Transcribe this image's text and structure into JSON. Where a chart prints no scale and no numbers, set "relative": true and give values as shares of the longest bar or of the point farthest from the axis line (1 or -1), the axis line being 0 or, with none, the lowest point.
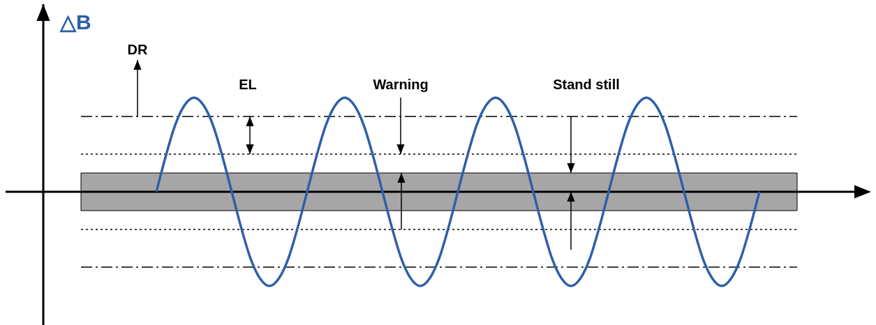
{
  "chart_data": {
    "type": "line",
    "relative": true,
    "ylabel": "△B",
    "marker": "none",
    "line_style": "solid",
    "categories": [
      null,
      null,
      null,
      null,
      null,
      null,
      null,
      null,
      null,
      null,
      null,
      null,
      null,
      null,
      null,
      null,
      null,
      null,
      null,
      null,
      null,
      null,
      null,
      null,
      null,
      null,
      null,
      null,
      null,
      null,
      null,
      null,
      null,
      null,
      null,
      null,
      null,
      null,
      null,
      null,
      null,
      null,
      null,
      null,
      null,
      null,
      null,
      null,
      null,
      null,
      null,
      null,
      null,
      null,
      null,
      null,
      null,
      null,
      null,
      null,
      null,
      null,
      null,
      null,
      null,
      null,
      null,
      null,
      null,
      null,
      null,
      null,
      null,
      null,
      null,
      null,
      null
    ],
    "series": [
      {
        "color": "#2e5fa8",
        "values": [
          null,
          null,
          null,
          null,
          null,
          null,
          null,
          null,
          0,
          0.38,
          0.71,
          0.92,
          1,
          0.92,
          0.71,
          0.38,
          0,
          -0.38,
          -0.71,
          -0.92,
          -1,
          -0.92,
          -0.71,
          -0.38,
          0,
          0.38,
          0.71,
          0.92,
          1,
          0.92,
          0.71,
          0.38,
          0,
          -0.38,
          -0.71,
          -0.92,
          -1,
          -0.92,
          -0.71,
          -0.38,
          0,
          0.38,
          0.71,
          0.92,
          1,
          0.92,
          0.71,
          0.38,
          0,
          -0.38,
          -0.71,
          -0.92,
          -1,
          -0.92,
          -0.71,
          -0.38,
          0,
          0.38,
          0.71,
          0.92,
          1,
          0.92,
          0.71,
          0.38,
          0,
          -0.38,
          -0.71,
          -0.92,
          -1,
          -0.92,
          -0.71,
          -0.38,
          0,
          null,
          null,
          null,
          null
        ]
      }
    ],
    "ref_lines": [
      {
        "axis": "y",
        "value": 0.8,
        "label": "DR",
        "line_style": "dashed"
      },
      {
        "axis": "y",
        "value": -0.8,
        "line_style": "dashed"
      },
      {
        "axis": "y",
        "value": 0.4,
        "label": "Warning",
        "line_style": "dotted"
      },
      {
        "axis": "y",
        "value": -0.4,
        "line_style": "dotted"
      }
    ],
    "bands": [
      {
        "axis": "y",
        "from": -0.2,
        "to": 0.2,
        "color": "#a6a6a6"
      }
    ],
    "annotations": [
      "EL",
      "Stand still"
    ]
  }
}
